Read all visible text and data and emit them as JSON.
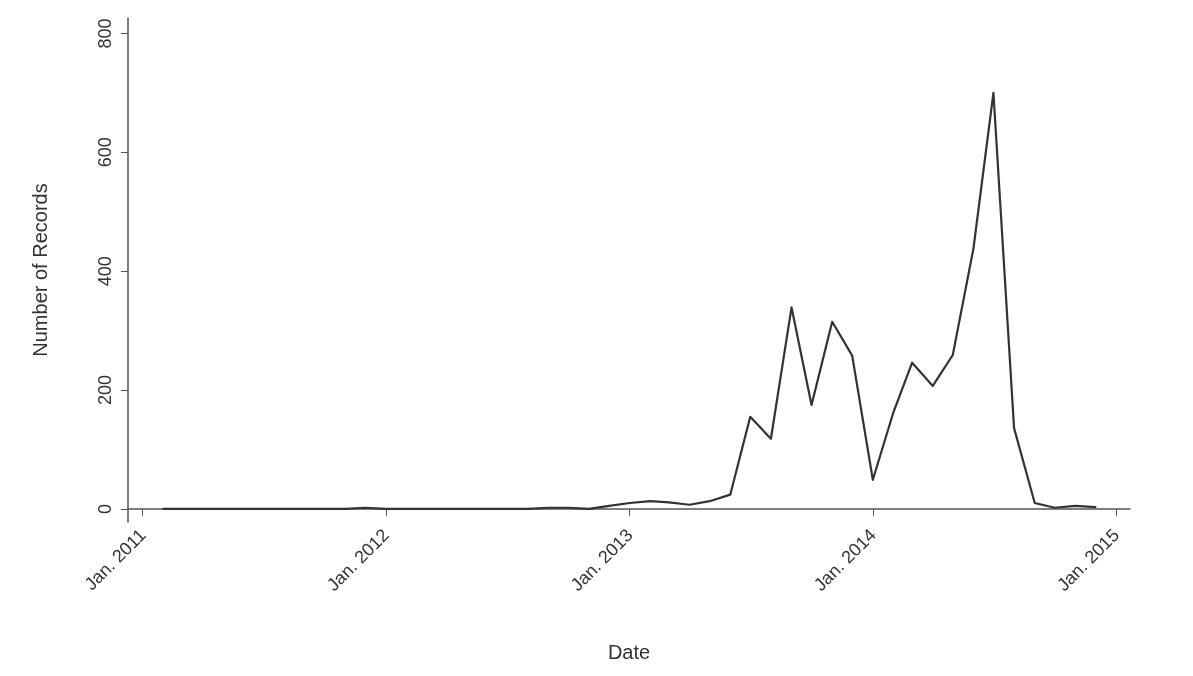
{
  "chart_data": {
    "type": "line",
    "xlabel": "Date",
    "ylabel": "Number of Records",
    "x": [
      "2011-02",
      "2011-03",
      "2011-04",
      "2011-05",
      "2011-06",
      "2011-07",
      "2011-08",
      "2011-09",
      "2011-10",
      "2011-11",
      "2011-12",
      "2012-01",
      "2012-02",
      "2012-03",
      "2012-04",
      "2012-05",
      "2012-06",
      "2012-07",
      "2012-08",
      "2012-09",
      "2012-10",
      "2012-11",
      "2012-12",
      "2013-01",
      "2013-02",
      "2013-03",
      "2013-04",
      "2013-05",
      "2013-06",
      "2013-07",
      "2013-08",
      "2013-09",
      "2013-10",
      "2013-11",
      "2013-12",
      "2014-01",
      "2014-02",
      "2014-03",
      "2014-04",
      "2014-05",
      "2014-06",
      "2014-07",
      "2014-08",
      "2014-09",
      "2014-10",
      "2014-11",
      "2014-12"
    ],
    "series": [
      {
        "color": "#333333",
        "values": [
          0,
          0,
          0,
          0,
          0,
          0,
          0,
          0,
          0,
          0,
          2,
          0,
          0,
          0,
          0,
          0,
          0,
          0,
          0,
          2,
          2,
          0,
          5,
          10,
          13,
          11,
          7,
          13,
          24,
          155,
          118,
          339,
          175,
          315,
          258,
          49,
          163,
          246,
          207,
          259,
          438,
          700,
          136,
          10,
          2,
          5,
          3
        ]
      }
    ],
    "xlim": [
      "2010-12-10",
      "2015-01-22"
    ],
    "xticks": [
      {
        "value": "2011-01",
        "label": "Jan. 2011"
      },
      {
        "value": "2012-01",
        "label": "Jan. 2012"
      },
      {
        "value": "2013-01",
        "label": "Jan. 2013"
      },
      {
        "value": "2014-01",
        "label": "Jan. 2014"
      },
      {
        "value": "2015-01",
        "label": "Jan. 2015"
      }
    ],
    "ylim": [
      -22,
      826
    ],
    "yticks": [
      0,
      200,
      400,
      600,
      800
    ],
    "grid": false,
    "marker": "none",
    "line_style": "solid"
  }
}
